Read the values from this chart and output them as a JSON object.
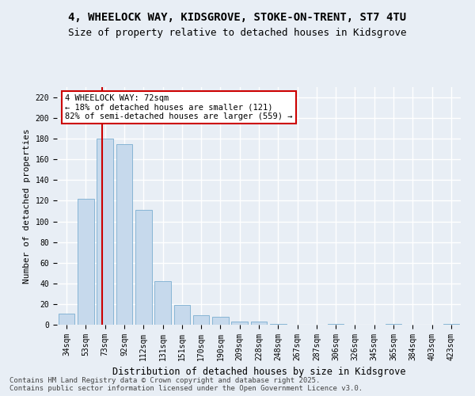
{
  "title_line1": "4, WHEELOCK WAY, KIDSGROVE, STOKE-ON-TRENT, ST7 4TU",
  "title_line2": "Size of property relative to detached houses in Kidsgrove",
  "categories": [
    "34sqm",
    "53sqm",
    "73sqm",
    "92sqm",
    "112sqm",
    "131sqm",
    "151sqm",
    "170sqm",
    "190sqm",
    "209sqm",
    "228sqm",
    "248sqm",
    "267sqm",
    "287sqm",
    "306sqm",
    "326sqm",
    "345sqm",
    "365sqm",
    "384sqm",
    "403sqm",
    "423sqm"
  ],
  "values": [
    11,
    122,
    180,
    175,
    111,
    42,
    19,
    9,
    8,
    3,
    3,
    1,
    0,
    0,
    1,
    0,
    0,
    1,
    0,
    0,
    1
  ],
  "bar_color": "#c6d9ec",
  "bar_edge_color": "#7aaed0",
  "marker_label": "4 WHEELOCK WAY: 72sqm",
  "annotation_line1": "← 18% of detached houses are smaller (121)",
  "annotation_line2": "82% of semi-detached houses are larger (559) →",
  "xlabel": "Distribution of detached houses by size in Kidsgrove",
  "ylabel": "Number of detached properties",
  "ylim": [
    0,
    230
  ],
  "yticks": [
    0,
    20,
    40,
    60,
    80,
    100,
    120,
    140,
    160,
    180,
    200,
    220
  ],
  "bg_color": "#e8eef5",
  "grid_color": "#ffffff",
  "footer_line1": "Contains HM Land Registry data © Crown copyright and database right 2025.",
  "footer_line2": "Contains public sector information licensed under the Open Government Licence v3.0.",
  "annotation_box_color": "#ffffff",
  "annotation_box_edge": "#cc0000",
  "marker_line_color": "#cc0000",
  "title_fontsize": 10,
  "subtitle_fontsize": 9,
  "xlabel_fontsize": 8.5,
  "ylabel_fontsize": 8,
  "tick_fontsize": 7,
  "footer_fontsize": 6.5,
  "annotation_fontsize": 7.5
}
